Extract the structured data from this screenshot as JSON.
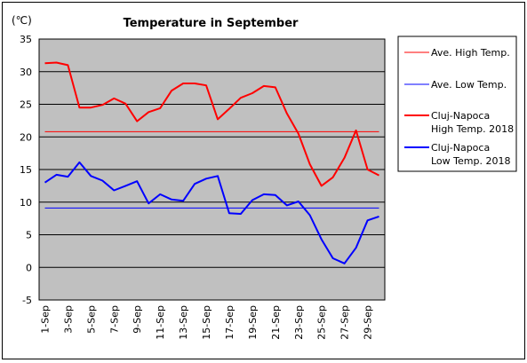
{
  "chart_data": {
    "type": "line",
    "title": "Temperature in September",
    "unit_label": "(℃)",
    "ylim": [
      -5,
      35
    ],
    "y_ticks": [
      "35",
      "30",
      "25",
      "20",
      "15",
      "10",
      "5",
      "0",
      "-5"
    ],
    "x_tick_labels": [
      "1-Sep",
      "3-Sep",
      "5-Sep",
      "7-Sep",
      "9-Sep",
      "11-Sep",
      "13-Sep",
      "15-Sep",
      "17-Sep",
      "19-Sep",
      "21-Sep",
      "23-Sep",
      "25-Sep",
      "27-Sep",
      "29-Sep"
    ],
    "x": [
      1,
      2,
      3,
      4,
      5,
      6,
      7,
      8,
      9,
      10,
      11,
      12,
      13,
      14,
      15,
      16,
      17,
      18,
      19,
      20,
      21,
      22,
      23,
      24,
      25,
      26,
      27,
      28,
      29,
      30
    ],
    "grid": true,
    "plot_background": "#c0c0c0",
    "legend_position": "right",
    "series": [
      {
        "name": "Ave. High Temp.",
        "color": "#ff0000",
        "width": 1,
        "values": [
          20.8,
          20.8,
          20.8,
          20.8,
          20.8,
          20.8,
          20.8,
          20.8,
          20.8,
          20.8,
          20.8,
          20.8,
          20.8,
          20.8,
          20.8,
          20.8,
          20.8,
          20.8,
          20.8,
          20.8,
          20.8,
          20.8,
          20.8,
          20.8,
          20.8,
          20.8,
          20.8,
          20.8,
          20.8,
          20.8
        ]
      },
      {
        "name": "Ave. Low Temp.",
        "color": "#0000ff",
        "width": 1,
        "values": [
          9.1,
          9.1,
          9.1,
          9.1,
          9.1,
          9.1,
          9.1,
          9.1,
          9.1,
          9.1,
          9.1,
          9.1,
          9.1,
          9.1,
          9.1,
          9.1,
          9.1,
          9.1,
          9.1,
          9.1,
          9.1,
          9.1,
          9.1,
          9.1,
          9.1,
          9.1,
          9.1,
          9.1,
          9.1,
          9.1
        ]
      },
      {
        "name": "Cluj-Napoca High Temp. 2018",
        "name_lines": [
          "Cluj-Napoca",
          "High Temp. 2018"
        ],
        "color": "#ff0000",
        "width": 2,
        "values": [
          31.3,
          31.4,
          31.0,
          24.5,
          24.5,
          24.9,
          25.9,
          25.1,
          22.4,
          23.8,
          24.4,
          27.1,
          28.2,
          28.2,
          27.9,
          22.7,
          24.3,
          26.0,
          26.7,
          27.8,
          27.6,
          23.6,
          20.5,
          15.8,
          12.5,
          13.8,
          16.8,
          21.0,
          15.0,
          14.1
        ]
      },
      {
        "name": "Cluj-Napoca Low Temp. 2018",
        "name_lines": [
          "Cluj-Napoca",
          "Low Temp. 2018"
        ],
        "color": "#0000ff",
        "width": 2,
        "values": [
          13.0,
          14.2,
          13.9,
          16.1,
          14.0,
          13.3,
          11.8,
          12.5,
          13.2,
          9.8,
          11.2,
          10.4,
          10.2,
          12.8,
          13.6,
          14.0,
          8.3,
          8.2,
          10.3,
          11.2,
          11.1,
          9.5,
          10.1,
          8.0,
          4.3,
          1.4,
          0.6,
          3.0,
          7.2,
          7.8
        ]
      }
    ]
  }
}
